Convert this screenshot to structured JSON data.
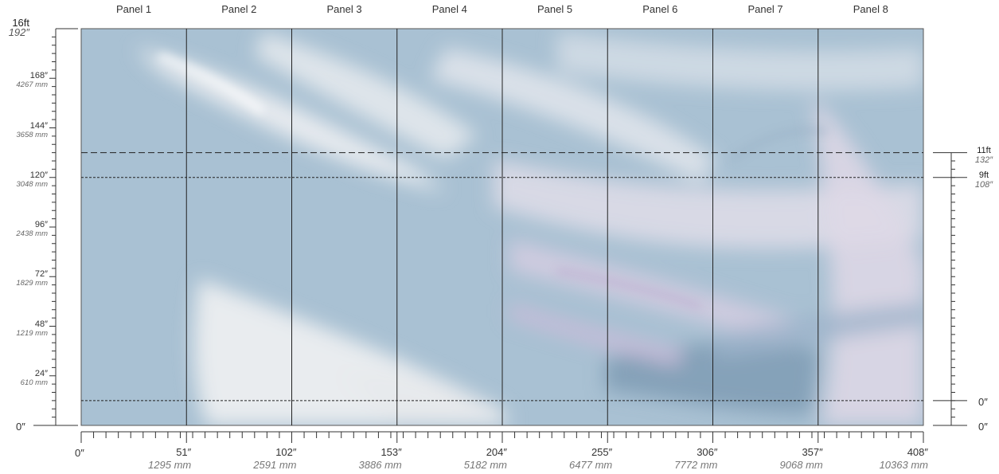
{
  "panels": [
    "Panel 1",
    "Panel 2",
    "Panel 3",
    "Panel 4",
    "Panel 5",
    "Panel 6",
    "Panel 7",
    "Panel 8"
  ],
  "wall": {
    "width_in": 408,
    "height_in": 192
  },
  "left_ruler": {
    "top_ft": "16ft",
    "top_in": "192″",
    "bottom": "0″",
    "marks": [
      {
        "in": "168″",
        "mm": "4267 mm"
      },
      {
        "in": "144″",
        "mm": "3658 mm"
      },
      {
        "in": "120″",
        "mm": "3048 mm"
      },
      {
        "in": "96″",
        "mm": "2438 mm"
      },
      {
        "in": "72″",
        "mm": "1829 mm"
      },
      {
        "in": "48″",
        "mm": "1219 mm"
      },
      {
        "in": "24″",
        "mm": "610 mm"
      }
    ]
  },
  "bottom_ruler": {
    "start": "0″",
    "marks": [
      {
        "in": "51″",
        "mm": "1295 mm"
      },
      {
        "in": "102″",
        "mm": "2591 mm"
      },
      {
        "in": "153″",
        "mm": "3886 mm"
      },
      {
        "in": "204″",
        "mm": "5182 mm"
      },
      {
        "in": "255″",
        "mm": "6477 mm"
      },
      {
        "in": "306″",
        "mm": "7772 mm"
      },
      {
        "in": "357″",
        "mm": "9068 mm"
      },
      {
        "in": "408″",
        "mm": "10363 mm"
      }
    ]
  },
  "right_ruler": {
    "top_ft": "11ft",
    "top_in": "132″",
    "mid_ft": "9ft",
    "mid_in": "108″",
    "base_upper": "0″",
    "base_lower": "0″"
  },
  "guides": [
    {
      "style": "dashed",
      "height_in": 132
    },
    {
      "style": "dotted",
      "height_in": 120
    },
    {
      "style": "dotted",
      "height_in": 12
    }
  ],
  "colors": {
    "base": "#a9c1d3",
    "light": "#e9ecef",
    "lavender": "#cdbfdc",
    "deep": "#7e9bb2"
  }
}
